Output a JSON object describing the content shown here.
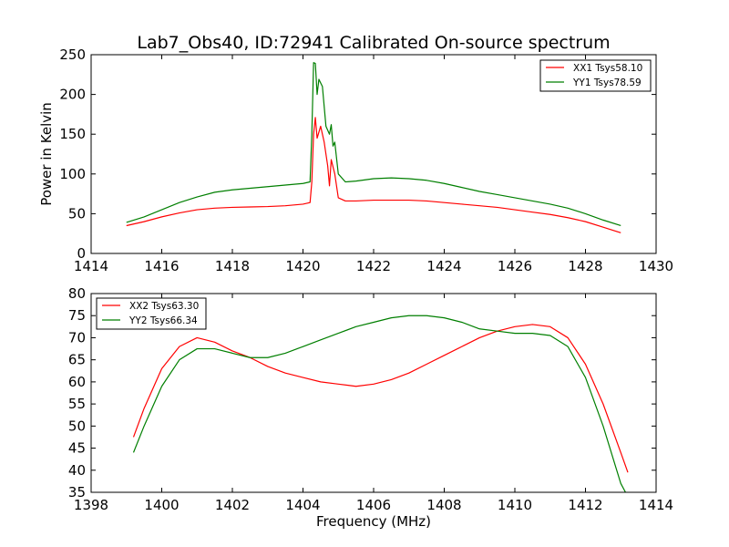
{
  "figure_title": "Lab7_Obs40, ID:72941 Calibrated On-source spectrum",
  "colors": {
    "xx": "#ff0000",
    "yy": "#007f00"
  },
  "chart_data": [
    {
      "type": "line",
      "title": "Lab7_Obs40, ID:72941 Calibrated On-source spectrum",
      "xlabel": "",
      "ylabel": "Power in Kelvin",
      "xlim": [
        1414,
        1430
      ],
      "ylim": [
        0,
        250
      ],
      "xticks": [
        1414,
        1416,
        1418,
        1420,
        1422,
        1424,
        1426,
        1428,
        1430
      ],
      "yticks": [
        0,
        50,
        100,
        150,
        200,
        250
      ],
      "grid": false,
      "legend": "top-right",
      "series": [
        {
          "name": "XX1 Tsys58.10",
          "color": "#ff0000",
          "points": [
            [
              1415,
              35
            ],
            [
              1415.5,
              40
            ],
            [
              1416,
              46
            ],
            [
              1416.5,
              51
            ],
            [
              1417,
              55
            ],
            [
              1417.5,
              57
            ],
            [
              1418,
              58
            ],
            [
              1418.5,
              58.5
            ],
            [
              1419,
              59
            ],
            [
              1419.5,
              60
            ],
            [
              1420,
              62
            ],
            [
              1420.2,
              64
            ],
            [
              1420.25,
              90
            ],
            [
              1420.3,
              150
            ],
            [
              1420.35,
              171
            ],
            [
              1420.4,
              145
            ],
            [
              1420.5,
              160
            ],
            [
              1420.6,
              140
            ],
            [
              1420.7,
              110
            ],
            [
              1420.75,
              85
            ],
            [
              1420.8,
              118
            ],
            [
              1420.9,
              100
            ],
            [
              1421.0,
              70
            ],
            [
              1421.2,
              66
            ],
            [
              1421.5,
              66
            ],
            [
              1422,
              67
            ],
            [
              1422.5,
              67
            ],
            [
              1423,
              67
            ],
            [
              1423.5,
              66
            ],
            [
              1424,
              64
            ],
            [
              1424.5,
              62
            ],
            [
              1425,
              60
            ],
            [
              1425.5,
              58
            ],
            [
              1426,
              55
            ],
            [
              1426.5,
              52
            ],
            [
              1427,
              49
            ],
            [
              1427.5,
              45
            ],
            [
              1428,
              40
            ],
            [
              1428.5,
              33
            ],
            [
              1429,
              26
            ]
          ]
        },
        {
          "name": "YY1 Tsys78.59",
          "color": "#007f00",
          "points": [
            [
              1415,
              39
            ],
            [
              1415.5,
              46
            ],
            [
              1416,
              55
            ],
            [
              1416.5,
              64
            ],
            [
              1417,
              71
            ],
            [
              1417.5,
              77
            ],
            [
              1418,
              80
            ],
            [
              1418.5,
              82
            ],
            [
              1419,
              84
            ],
            [
              1419.5,
              86
            ],
            [
              1420,
              88
            ],
            [
              1420.2,
              90
            ],
            [
              1420.25,
              150
            ],
            [
              1420.3,
              240
            ],
            [
              1420.35,
              239
            ],
            [
              1420.4,
              200
            ],
            [
              1420.45,
              219
            ],
            [
              1420.55,
              210
            ],
            [
              1420.65,
              160
            ],
            [
              1420.75,
              150
            ],
            [
              1420.8,
              162
            ],
            [
              1420.85,
              135
            ],
            [
              1420.9,
              140
            ],
            [
              1421.0,
              100
            ],
            [
              1421.2,
              90
            ],
            [
              1421.5,
              91
            ],
            [
              1422,
              94
            ],
            [
              1422.5,
              95
            ],
            [
              1423,
              94
            ],
            [
              1423.5,
              92
            ],
            [
              1424,
              88
            ],
            [
              1424.5,
              83
            ],
            [
              1425,
              78
            ],
            [
              1425.5,
              74
            ],
            [
              1426,
              70
            ],
            [
              1426.5,
              66
            ],
            [
              1427,
              62
            ],
            [
              1427.5,
              57
            ],
            [
              1428,
              50
            ],
            [
              1428.5,
              42
            ],
            [
              1429,
              35
            ]
          ]
        }
      ]
    },
    {
      "type": "line",
      "title": "",
      "xlabel": "Frequency (MHz)",
      "ylabel": "",
      "xlim": [
        1398,
        1414
      ],
      "ylim": [
        35,
        80
      ],
      "xticks": [
        1398,
        1400,
        1402,
        1404,
        1406,
        1408,
        1410,
        1412,
        1414
      ],
      "yticks": [
        35,
        40,
        45,
        50,
        55,
        60,
        65,
        70,
        75,
        80
      ],
      "grid": false,
      "legend": "top-left",
      "series": [
        {
          "name": "XX2 Tsys63.30",
          "color": "#ff0000",
          "points": [
            [
              1399.2,
              47.5
            ],
            [
              1399.5,
              54
            ],
            [
              1400,
              63
            ],
            [
              1400.5,
              68
            ],
            [
              1401,
              70
            ],
            [
              1401.5,
              69
            ],
            [
              1402,
              67
            ],
            [
              1402.5,
              65.5
            ],
            [
              1403,
              63.5
            ],
            [
              1403.5,
              62
            ],
            [
              1404,
              61
            ],
            [
              1404.5,
              60
            ],
            [
              1405,
              59.5
            ],
            [
              1405.5,
              59
            ],
            [
              1406,
              59.5
            ],
            [
              1406.5,
              60.5
            ],
            [
              1407,
              62
            ],
            [
              1407.5,
              64
            ],
            [
              1408,
              66
            ],
            [
              1408.5,
              68
            ],
            [
              1409,
              70
            ],
            [
              1409.5,
              71.5
            ],
            [
              1410,
              72.5
            ],
            [
              1410.5,
              73
            ],
            [
              1411,
              72.5
            ],
            [
              1411.5,
              70
            ],
            [
              1412,
              64
            ],
            [
              1412.5,
              55
            ],
            [
              1413,
              44
            ],
            [
              1413.2,
              39.5
            ]
          ]
        },
        {
          "name": "YY2 Tsys66.34",
          "color": "#007f00",
          "points": [
            [
              1399.2,
              44
            ],
            [
              1399.5,
              50
            ],
            [
              1400,
              59
            ],
            [
              1400.5,
              65
            ],
            [
              1401,
              67.5
            ],
            [
              1401.5,
              67.5
            ],
            [
              1402,
              66.5
            ],
            [
              1402.5,
              65.5
            ],
            [
              1403,
              65.5
            ],
            [
              1403.5,
              66.5
            ],
            [
              1404,
              68
            ],
            [
              1404.5,
              69.5
            ],
            [
              1405,
              71
            ],
            [
              1405.5,
              72.5
            ],
            [
              1406,
              73.5
            ],
            [
              1406.5,
              74.5
            ],
            [
              1407,
              75
            ],
            [
              1407.5,
              75
            ],
            [
              1408,
              74.5
            ],
            [
              1408.5,
              73.5
            ],
            [
              1409,
              72
            ],
            [
              1409.5,
              71.5
            ],
            [
              1410,
              71
            ],
            [
              1410.5,
              71
            ],
            [
              1411,
              70.5
            ],
            [
              1411.5,
              68
            ],
            [
              1412,
              61
            ],
            [
              1412.5,
              50
            ],
            [
              1413,
              37
            ],
            [
              1413.2,
              34
            ]
          ]
        }
      ]
    }
  ]
}
